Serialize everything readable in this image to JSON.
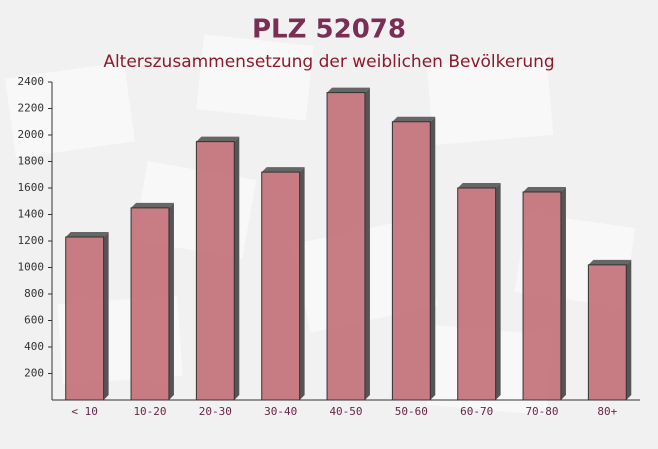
{
  "chart_data": {
    "type": "bar",
    "title": "PLZ 52078",
    "subtitle": "Alterszusammensetzung der weiblichen Bevölkerung",
    "categories": [
      "< 10",
      "10-20",
      "20-30",
      "30-40",
      "40-50",
      "50-60",
      "60-70",
      "70-80",
      "80+"
    ],
    "values": [
      1230,
      1450,
      1950,
      1720,
      2320,
      2100,
      1600,
      1570,
      1020
    ],
    "color": "#c0666e",
    "ylim": [
      0,
      2400
    ],
    "yticks": [
      200,
      400,
      600,
      800,
      1000,
      1200,
      1400,
      1600,
      1800,
      2000,
      2200,
      2400
    ],
    "grid": false
  }
}
